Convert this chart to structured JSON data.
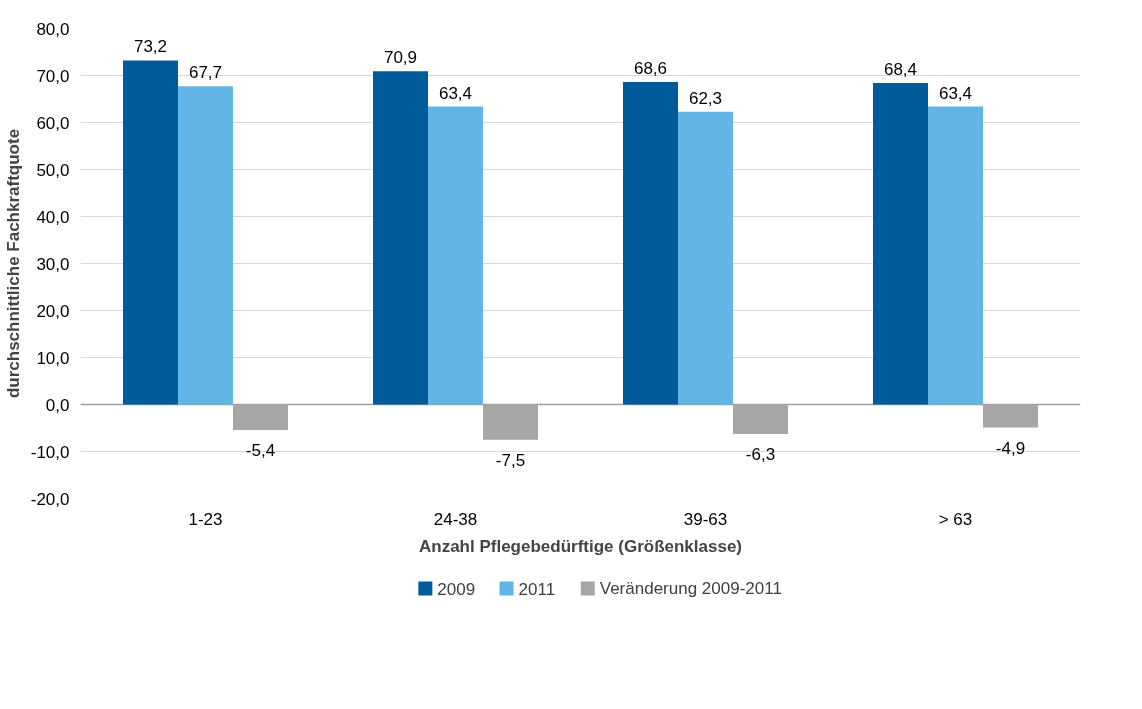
{
  "chart_data": {
    "type": "bar",
    "xlabel": "Anzahl Pflegebedürftige (Größenklasse)",
    "ylabel": "durchschnittliche Fachkraftquote",
    "categories": [
      "1-23",
      "24-38",
      "39-63",
      "> 63"
    ],
    "series": [
      {
        "name": "2009",
        "color": "#005b9a",
        "values": [
          73.2,
          70.9,
          68.6,
          68.4
        ],
        "value_labels": [
          "73,2",
          "70,9",
          "68,6",
          "68,4"
        ]
      },
      {
        "name": "2011",
        "color": "#62b5e5",
        "values": [
          67.7,
          63.4,
          62.3,
          63.4
        ],
        "value_labels": [
          "67,7",
          "63,4",
          "62,3",
          "63,4"
        ]
      },
      {
        "name": "Veränderung 2009-2011",
        "color": "#a6a6a6",
        "values": [
          -5.4,
          -7.5,
          -6.3,
          -4.9
        ],
        "value_labels": [
          "-5,4",
          "-7,5",
          "-6,3",
          "-4,9"
        ]
      }
    ],
    "ylim": [
      -20,
      80
    ],
    "yticks": [
      {
        "value": -20,
        "label": "-20,0"
      },
      {
        "value": -10,
        "label": "-10,0"
      },
      {
        "value": 0,
        "label": "0,0"
      },
      {
        "value": 10,
        "label": "10,0"
      },
      {
        "value": 20,
        "label": "20,0"
      },
      {
        "value": 30,
        "label": "30,0"
      },
      {
        "value": 40,
        "label": "40,0"
      },
      {
        "value": 50,
        "label": "50,0"
      },
      {
        "value": 60,
        "label": "60,0"
      },
      {
        "value": 70,
        "label": "70,0"
      },
      {
        "value": 80,
        "label": "80,0"
      }
    ],
    "grid": "y",
    "legend": "bottom"
  }
}
